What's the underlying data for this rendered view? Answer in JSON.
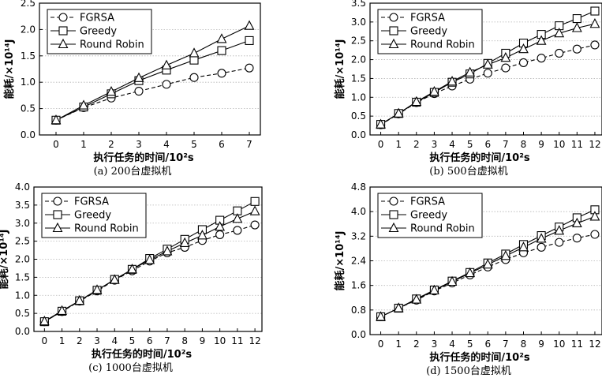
{
  "chart_data": [
    {
      "type": "line",
      "subtitle": "(a) 200台虚拟机",
      "xlabel": "执行任务的时间/10²s",
      "ylabel": "能耗/×10¹⁴J",
      "x": [
        0,
        1,
        2,
        3,
        4,
        5,
        6,
        7
      ],
      "xticks": [
        "0",
        "1",
        "2",
        "3",
        "4",
        "5",
        "6",
        "7"
      ],
      "xlim": [
        -0.6,
        7.4
      ],
      "ylim": [
        0,
        2.5
      ],
      "yticks": [
        "0.0",
        "0.5",
        "1.0",
        "1.5",
        "2.0",
        "2.5"
      ],
      "grid": true,
      "legend": "top-left",
      "series": [
        {
          "name": "FGRSA",
          "marker": "circle",
          "dash": true,
          "values": [
            0.28,
            0.52,
            0.7,
            0.83,
            0.96,
            1.09,
            1.17,
            1.27
          ]
        },
        {
          "name": "Greedy",
          "marker": "square",
          "dash": false,
          "values": [
            0.28,
            0.53,
            0.78,
            1.03,
            1.23,
            1.42,
            1.6,
            1.79
          ]
        },
        {
          "name": "Round Robin",
          "marker": "triangle",
          "dash": false,
          "values": [
            0.28,
            0.56,
            0.82,
            1.08,
            1.32,
            1.55,
            1.82,
            2.07
          ]
        }
      ]
    },
    {
      "type": "line",
      "subtitle": "(b) 500台虚拟机",
      "xlabel": "执行任务的时间/10²s",
      "ylabel": "能耗/×10¹⁴J",
      "x": [
        0,
        1,
        2,
        3,
        4,
        5,
        6,
        7,
        8,
        9,
        10,
        11,
        12
      ],
      "xticks": [
        "0",
        "1",
        "2",
        "3",
        "4",
        "5",
        "6",
        "7",
        "8",
        "9",
        "10",
        "11",
        "12"
      ],
      "xlim": [
        -0.6,
        12.4
      ],
      "ylim": [
        0,
        3.5
      ],
      "yticks": [
        "0.0",
        "0.5",
        "1.0",
        "1.5",
        "2.0",
        "2.5",
        "3.0",
        "3.5"
      ],
      "grid": true,
      "legend": "top-left",
      "series": [
        {
          "name": "FGRSA",
          "marker": "circle",
          "dash": true,
          "values": [
            0.27,
            0.56,
            0.86,
            1.1,
            1.3,
            1.48,
            1.64,
            1.78,
            1.92,
            2.04,
            2.17,
            2.28,
            2.39
          ]
        },
        {
          "name": "Greedy",
          "marker": "square",
          "dash": false,
          "values": [
            0.28,
            0.57,
            0.87,
            1.13,
            1.4,
            1.62,
            1.9,
            2.17,
            2.44,
            2.67,
            2.9,
            3.09,
            3.29
          ]
        },
        {
          "name": "Round Robin",
          "marker": "triangle",
          "dash": false,
          "values": [
            0.28,
            0.57,
            0.88,
            1.15,
            1.42,
            1.66,
            1.87,
            2.05,
            2.28,
            2.5,
            2.7,
            2.84,
            2.95
          ]
        }
      ]
    },
    {
      "type": "line",
      "subtitle": "(c) 1000台虚拟机",
      "xlabel": "执行任务的时间/10²s",
      "ylabel": "能耗/×10¹⁴J",
      "x": [
        0,
        1,
        2,
        3,
        4,
        5,
        6,
        7,
        8,
        9,
        10,
        11,
        12
      ],
      "xticks": [
        "0",
        "1",
        "2",
        "3",
        "4",
        "5",
        "6",
        "7",
        "8",
        "9",
        "10",
        "11",
        "12"
      ],
      "xlim": [
        -0.6,
        12.4
      ],
      "ylim": [
        0,
        4.0
      ],
      "yticks": [
        "0.0",
        "0.5",
        "1.0",
        "1.5",
        "2.0",
        "2.5",
        "3.0",
        "3.5",
        "4.0"
      ],
      "grid": true,
      "legend": "top-left",
      "series": [
        {
          "name": "FGRSA",
          "marker": "circle",
          "dash": true,
          "values": [
            0.27,
            0.55,
            0.84,
            1.12,
            1.42,
            1.68,
            1.95,
            2.18,
            2.33,
            2.52,
            2.68,
            2.8,
            2.95
          ]
        },
        {
          "name": "Greedy",
          "marker": "square",
          "dash": false,
          "values": [
            0.27,
            0.56,
            0.85,
            1.14,
            1.44,
            1.72,
            2.02,
            2.28,
            2.55,
            2.82,
            3.08,
            3.34,
            3.6
          ]
        },
        {
          "name": "Round Robin",
          "marker": "triangle",
          "dash": false,
          "values": [
            0.28,
            0.57,
            0.85,
            1.15,
            1.43,
            1.72,
            1.98,
            2.22,
            2.45,
            2.66,
            2.9,
            3.12,
            3.33
          ]
        }
      ]
    },
    {
      "type": "line",
      "subtitle": "(d) 1500台虚拟机",
      "xlabel": "执行任务的时间/10²s",
      "ylabel": "能耗/×10¹⁴J",
      "x": [
        0,
        1,
        2,
        3,
        4,
        5,
        6,
        7,
        8,
        9,
        10,
        11,
        12
      ],
      "xticks": [
        "0",
        "1",
        "2",
        "3",
        "4",
        "5",
        "6",
        "7",
        "8",
        "9",
        "10",
        "11",
        "12"
      ],
      "xlim": [
        -0.6,
        12.4
      ],
      "ylim": [
        0,
        4.8
      ],
      "yticks": [
        "0.0",
        "0.8",
        "1.6",
        "2.4",
        "3.2",
        "4.0",
        "4.8"
      ],
      "grid": true,
      "legend": "top-left",
      "series": [
        {
          "name": "FGRSA",
          "marker": "circle",
          "dash": true,
          "values": [
            0.58,
            0.86,
            1.12,
            1.42,
            1.68,
            1.94,
            2.2,
            2.44,
            2.66,
            2.84,
            3.0,
            3.14,
            3.26
          ]
        },
        {
          "name": "Greedy",
          "marker": "square",
          "dash": false,
          "values": [
            0.58,
            0.86,
            1.16,
            1.45,
            1.74,
            2.02,
            2.33,
            2.62,
            2.93,
            3.22,
            3.5,
            3.8,
            4.06
          ]
        },
        {
          "name": "Round Robin",
          "marker": "triangle",
          "dash": false,
          "values": [
            0.58,
            0.86,
            1.14,
            1.44,
            1.72,
            2.0,
            2.28,
            2.56,
            2.84,
            3.12,
            3.38,
            3.62,
            3.84
          ]
        }
      ]
    }
  ]
}
